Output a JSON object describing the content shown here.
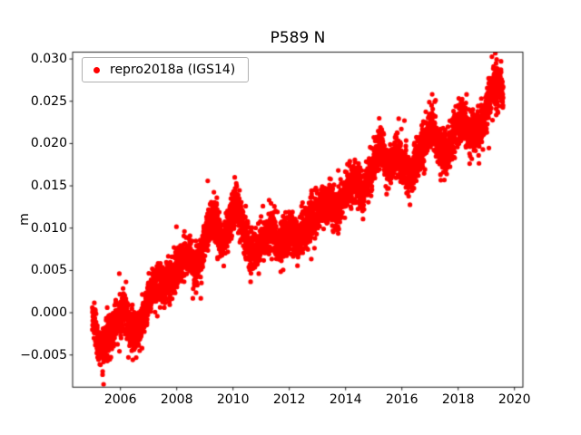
{
  "chart_data": {
    "type": "scatter",
    "title": "P589 N",
    "xlabel": "",
    "ylabel": "m",
    "xlim": [
      2004.3,
      2020.3
    ],
    "ylim": [
      -0.0088,
      0.0308
    ],
    "xticks": [
      2006,
      2008,
      2010,
      2012,
      2014,
      2016,
      2018,
      2020
    ],
    "xtick_labels": [
      "2006",
      "2008",
      "2010",
      "2012",
      "2014",
      "2016",
      "2018",
      "2020"
    ],
    "yticks": [
      -0.005,
      0.0,
      0.005,
      0.01,
      0.015,
      0.02,
      0.025,
      0.03
    ],
    "ytick_labels": [
      "−0.005",
      "0.000",
      "0.005",
      "0.010",
      "0.015",
      "0.020",
      "0.025",
      "0.030"
    ],
    "grid": false,
    "legend_position": "upper left",
    "axes_edge_color": "#000000",
    "background_color": "#ffffff",
    "series": [
      {
        "name": "repro2018a (IGS14)",
        "color": "#ff0000",
        "marker": "circle",
        "marker_radius_px": 2.6,
        "sampling": "daily",
        "points_start": 2005.0,
        "points_end": 2019.6,
        "points_per_year": 365,
        "noise_std": 0.0012,
        "outlier_probability": 0.012,
        "outlier_extra_std": 0.0025,
        "seasonal_amplitude": 0.0005,
        "trend_anchors": [
          [
            2005.0,
            -0.0005
          ],
          [
            2005.1,
            -0.002
          ],
          [
            2005.22,
            -0.0042
          ],
          [
            2005.35,
            -0.005
          ],
          [
            2005.5,
            -0.0035
          ],
          [
            2005.7,
            -0.002
          ],
          [
            2005.9,
            -0.0005
          ],
          [
            2006.1,
            0.0
          ],
          [
            2006.35,
            -0.0025
          ],
          [
            2006.55,
            -0.0025
          ],
          [
            2006.8,
            0.0
          ],
          [
            2007.0,
            0.0015
          ],
          [
            2007.2,
            0.003
          ],
          [
            2007.5,
            0.0035
          ],
          [
            2007.8,
            0.0045
          ],
          [
            2008.0,
            0.005
          ],
          [
            2008.2,
            0.006
          ],
          [
            2008.45,
            0.0065
          ],
          [
            2008.7,
            0.006
          ],
          [
            2008.9,
            0.0075
          ],
          [
            2009.1,
            0.0095
          ],
          [
            2009.35,
            0.011
          ],
          [
            2009.6,
            0.0085
          ],
          [
            2009.85,
            0.0105
          ],
          [
            2010.1,
            0.0125
          ],
          [
            2010.35,
            0.01
          ],
          [
            2010.6,
            0.0075
          ],
          [
            2010.85,
            0.008
          ],
          [
            2011.1,
            0.0085
          ],
          [
            2011.45,
            0.0095
          ],
          [
            2011.7,
            0.0085
          ],
          [
            2011.9,
            0.0095
          ],
          [
            2012.1,
            0.009
          ],
          [
            2012.3,
            0.008
          ],
          [
            2012.55,
            0.01
          ],
          [
            2012.8,
            0.0115
          ],
          [
            2013.0,
            0.012
          ],
          [
            2013.2,
            0.0125
          ],
          [
            2013.45,
            0.013
          ],
          [
            2013.7,
            0.0125
          ],
          [
            2013.9,
            0.0135
          ],
          [
            2014.1,
            0.0145
          ],
          [
            2014.35,
            0.015
          ],
          [
            2014.6,
            0.0145
          ],
          [
            2014.85,
            0.0165
          ],
          [
            2015.05,
            0.018
          ],
          [
            2015.25,
            0.0195
          ],
          [
            2015.5,
            0.017
          ],
          [
            2015.8,
            0.0195
          ],
          [
            2016.0,
            0.018
          ],
          [
            2016.3,
            0.015
          ],
          [
            2016.6,
            0.019
          ],
          [
            2016.85,
            0.021
          ],
          [
            2017.1,
            0.022
          ],
          [
            2017.35,
            0.0185
          ],
          [
            2017.6,
            0.0195
          ],
          [
            2017.9,
            0.022
          ],
          [
            2018.1,
            0.023
          ],
          [
            2018.35,
            0.021
          ],
          [
            2018.6,
            0.0215
          ],
          [
            2018.9,
            0.023
          ],
          [
            2019.1,
            0.025
          ],
          [
            2019.3,
            0.0265
          ],
          [
            2019.5,
            0.027
          ],
          [
            2019.6,
            0.026
          ]
        ]
      }
    ]
  }
}
